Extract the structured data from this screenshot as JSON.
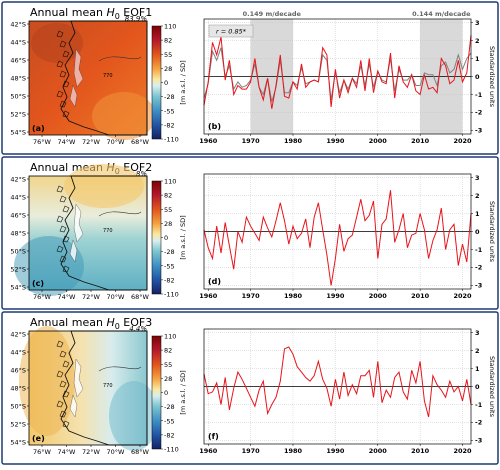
{
  "figure": {
    "rows": [
      {
        "title_prefix": "Annual mean ",
        "title_var": "H",
        "title_sub": "0",
        "title_suffix": " EOF1",
        "variance": "83.9%",
        "map_panel_label": "(a)",
        "line_panel_label": "(b)",
        "correlation_box": "r = 0.85*",
        "trend_labels": [
          "0.149 m/decade",
          "0.144 m/decade"
        ],
        "contour_label": "770"
      },
      {
        "title_prefix": "Annual mean ",
        "title_var": "H",
        "title_sub": "0",
        "title_suffix": " EOF2",
        "variance": "8%",
        "map_panel_label": "(c)",
        "line_panel_label": "(d)",
        "contour_label": "770"
      },
      {
        "title_prefix": "Annual mean ",
        "title_var": "H",
        "title_sub": "0",
        "title_suffix": " EOF3",
        "variance": "4.4%",
        "map_panel_label": "(e)",
        "line_panel_label": "(f)",
        "contour_label": "770"
      }
    ],
    "map_lat_ticks": [
      "42°S",
      "44°S",
      "46°S",
      "48°S",
      "50°S",
      "52°S",
      "54°S"
    ],
    "map_lon_ticks": [
      "76°W",
      "74°W",
      "72°W",
      "70°W",
      "68°W"
    ],
    "colorbar_ticks": [
      "110",
      "82",
      "55",
      "28",
      "0",
      "-28",
      "-55",
      "-82",
      "-110"
    ],
    "colorbar_label": "[m a.s.l. / SD]",
    "right_axis_label": "Standardized units",
    "colors": {
      "series_red": "#e8141b",
      "series_grey": "#808080",
      "shade": "#d9d9d9",
      "zero_line": "#000000"
    }
  },
  "chart_data": [
    {
      "type": "line",
      "panel": "(b)",
      "x": [
        1959,
        1960,
        1961,
        1962,
        1963,
        1964,
        1965,
        1966,
        1967,
        1968,
        1969,
        1970,
        1971,
        1972,
        1973,
        1974,
        1975,
        1976,
        1977,
        1978,
        1979,
        1980,
        1981,
        1982,
        1983,
        1984,
        1985,
        1986,
        1987,
        1988,
        1989,
        1990,
        1991,
        1992,
        1993,
        1994,
        1995,
        1996,
        1997,
        1998,
        1999,
        2000,
        2001,
        2002,
        2003,
        2004,
        2005,
        2006,
        2007,
        2008,
        2009,
        2010,
        2011,
        2012,
        2013,
        2014,
        2015,
        2016,
        2017,
        2018,
        2019,
        2020,
        2021,
        2022
      ],
      "series": [
        {
          "values": [
            -1.6,
            -0.3,
            1.9,
            1.2,
            2.2,
            -0.2,
            0.9,
            -1.0,
            -0.5,
            -0.7,
            -0.7,
            -0.3,
            1.0,
            -0.6,
            -1.3,
            -0.1,
            -1.8,
            -0.5,
            1.2,
            -1.1,
            -1.2,
            -0.3,
            -0.7,
            0.7,
            -0.6,
            -0.3,
            -0.2,
            -0.3,
            1.6,
            1.2,
            -1.7,
            0.4,
            -1.2,
            -0.2,
            -0.9,
            -0.1,
            -0.6,
            0.9,
            -0.8,
            1.0,
            -0.9,
            0.3,
            -0.3,
            -0.4,
            1.3,
            -1.2,
            0.6,
            -0.3,
            -0.6,
            0.1,
            -0.8,
            -1.0,
            0.1,
            -0.7,
            -0.6,
            -0.9,
            1.0,
            0.6,
            -0.4,
            -0.2,
            0.9,
            -0.3,
            0.2,
            2.3
          ]
        },
        {
          "values": [
            -1.2,
            -0.4,
            1.4,
            0.9,
            1.6,
            0.0,
            0.6,
            -0.7,
            -0.3,
            -0.6,
            -0.5,
            -0.2,
            0.7,
            -0.6,
            -1.0,
            -0.1,
            -1.4,
            -0.6,
            0.9,
            -0.9,
            -0.9,
            -0.3,
            -0.5,
            0.5,
            -0.4,
            -0.3,
            -0.2,
            -0.3,
            1.2,
            0.9,
            -1.3,
            0.3,
            -0.9,
            -0.2,
            -0.7,
            -0.1,
            -0.4,
            0.6,
            -0.5,
            0.7,
            -0.6,
            0.3,
            -0.2,
            -0.3,
            1.0,
            -0.8,
            0.4,
            -0.2,
            -0.2,
            0.1,
            -0.5,
            -0.5,
            0.2,
            0.1,
            0.1,
            -0.5,
            0.6,
            0.8,
            0.2,
            0.4,
            1.2,
            0.4,
            1.0,
            1.3
          ]
        }
      ],
      "shaded_periods": [
        [
          1970,
          1980
        ],
        [
          2010,
          2020
        ]
      ],
      "xticks": [
        1960,
        1970,
        1980,
        1990,
        2000,
        2010,
        2020
      ],
      "yticks": [
        -3,
        -2,
        -1,
        0,
        1,
        2,
        3
      ],
      "xlim": [
        1959,
        2022
      ],
      "ylim": [
        -3.2,
        3.2
      ],
      "ylabel": "Standardized units",
      "grid": true
    },
    {
      "type": "line",
      "panel": "(d)",
      "x": [
        1959,
        1960,
        1961,
        1962,
        1963,
        1964,
        1965,
        1966,
        1967,
        1968,
        1969,
        1970,
        1971,
        1972,
        1973,
        1974,
        1975,
        1976,
        1977,
        1978,
        1979,
        1980,
        1981,
        1982,
        1983,
        1984,
        1985,
        1986,
        1987,
        1988,
        1989,
        1990,
        1991,
        1992,
        1993,
        1994,
        1995,
        1996,
        1997,
        1998,
        1999,
        2000,
        2001,
        2002,
        2003,
        2004,
        2005,
        2006,
        2007,
        2008,
        2009,
        2010,
        2011,
        2012,
        2013,
        2014,
        2015,
        2016,
        2017,
        2018,
        2019,
        2020,
        2021,
        2022
      ],
      "series": [
        {
          "values": [
            0.1,
            -0.9,
            -1.5,
            0.3,
            -1.2,
            0.5,
            -0.8,
            -2.1,
            0.0,
            -0.6,
            0.8,
            0.3,
            -0.1,
            -0.5,
            0.8,
            0.2,
            -0.3,
            0.6,
            1.6,
            0.6,
            -0.7,
            0.3,
            -0.4,
            -0.1,
            0.7,
            -0.9,
            0.8,
            1.6,
            0.1,
            -1.3,
            -3.0,
            -1.5,
            0.4,
            -1.1,
            -0.4,
            -0.2,
            0.8,
            1.8,
            0.6,
            0.9,
            1.7,
            -1.5,
            0.4,
            0.7,
            2.3,
            -0.6,
            0.1,
            1.0,
            -0.9,
            -0.2,
            -0.1,
            1.0,
            0.1,
            -1.5,
            -0.5,
            0.1,
            1.3,
            -1.0,
            0.1,
            0.4,
            -1.9,
            -0.7,
            -1.7,
            1.0
          ]
        }
      ],
      "xticks": [
        1960,
        1970,
        1980,
        1990,
        2000,
        2010,
        2020
      ],
      "yticks": [
        -3,
        -2,
        -1,
        0,
        1,
        2,
        3
      ],
      "xlim": [
        1959,
        2022
      ],
      "ylim": [
        -3.2,
        3.2
      ],
      "ylabel": "Standardized units",
      "grid": true
    },
    {
      "type": "line",
      "panel": "(f)",
      "x": [
        1959,
        1960,
        1961,
        1962,
        1963,
        1964,
        1965,
        1966,
        1967,
        1968,
        1969,
        1970,
        1971,
        1972,
        1973,
        1974,
        1975,
        1976,
        1977,
        1978,
        1979,
        1980,
        1981,
        1982,
        1983,
        1984,
        1985,
        1986,
        1987,
        1988,
        1989,
        1990,
        1991,
        1992,
        1993,
        1994,
        1995,
        1996,
        1997,
        1998,
        1999,
        2000,
        2001,
        2002,
        2003,
        2004,
        2005,
        2006,
        2007,
        2008,
        2009,
        2010,
        2011,
        2012,
        2013,
        2014,
        2015,
        2016,
        2017,
        2018,
        2019,
        2020,
        2021,
        2022
      ],
      "series": [
        {
          "values": [
            0.7,
            -0.4,
            -0.3,
            0.2,
            -1.0,
            0.5,
            -1.3,
            -0.1,
            0.8,
            0.4,
            -0.1,
            -0.6,
            -1.1,
            -0.2,
            0.3,
            -1.5,
            -1.0,
            -0.6,
            0.3,
            2.1,
            2.2,
            1.8,
            1.1,
            0.8,
            0.5,
            0.3,
            0.6,
            1.4,
            0.4,
            -0.1,
            -1.1,
            0.4,
            -0.7,
            0.8,
            -0.5,
            0.1,
            -0.4,
            0.6,
            0.6,
            0.9,
            -0.6,
            1.4,
            -0.9,
            -0.2,
            -0.6,
            0.5,
            0.8,
            -0.3,
            -0.7,
            0.9,
            0.2,
            1.4,
            -0.8,
            -1.7,
            0.6,
            0.1,
            -0.2,
            -0.6,
            0.3,
            -0.3,
            0.0,
            -0.8,
            0.4,
            -1.0
          ]
        }
      ],
      "xticks": [
        1960,
        1970,
        1980,
        1990,
        2000,
        2010,
        2020
      ],
      "yticks": [
        -3,
        -2,
        -1,
        0,
        1,
        2,
        3
      ],
      "xlim": [
        1959,
        2022
      ],
      "ylim": [
        -3.2,
        3.2
      ],
      "ylabel": "Standardized units",
      "grid": true
    }
  ]
}
